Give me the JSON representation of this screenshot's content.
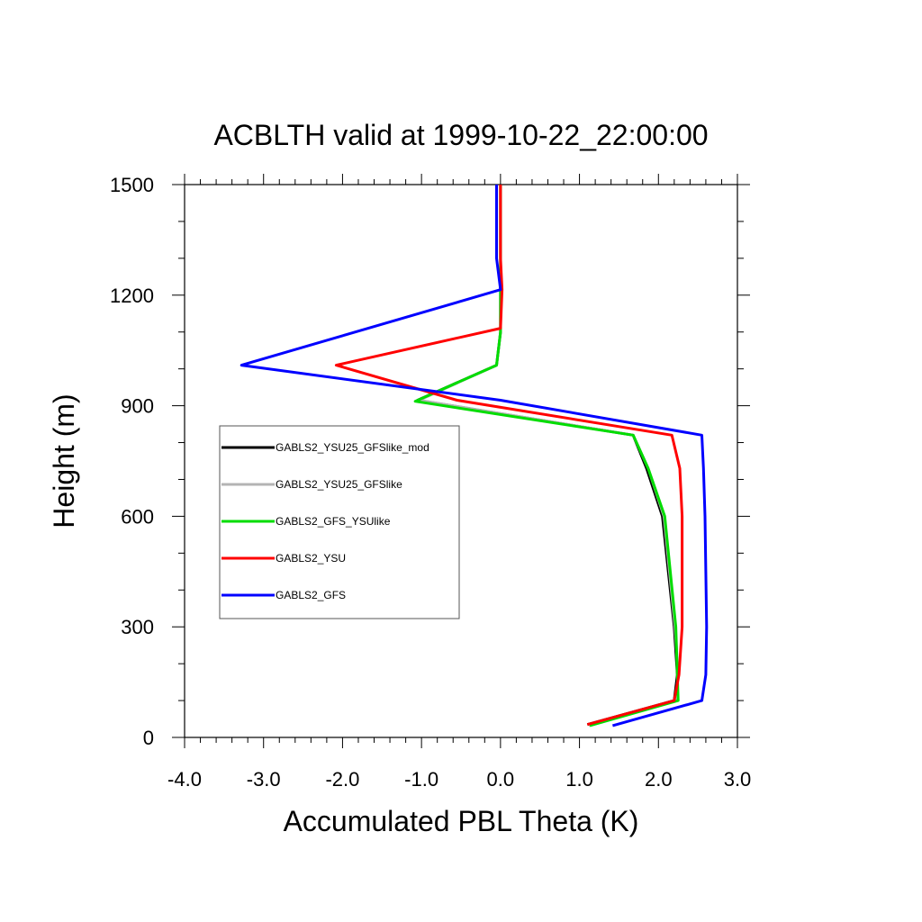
{
  "chart_data": {
    "type": "line",
    "title": "ACBLTH valid at 1999-10-22_22:00:00",
    "xlabel": "Accumulated PBL Theta (K)",
    "ylabel": "Height (m)",
    "xlim": [
      -4.0,
      3.0
    ],
    "ylim": [
      0,
      1500
    ],
    "xticks": [
      "-4.0",
      "-3.0",
      "-2.0",
      "-1.0",
      "0.0",
      "1.0",
      "2.0",
      "3.0"
    ],
    "yticks": [
      "0",
      "300",
      "600",
      "900",
      "1200",
      "1500"
    ],
    "legend_position": "left-middle",
    "series": [
      {
        "name": "GABLS2_YSU25_GFSlike_mod",
        "color": "#000000",
        "points": [
          [
            1.1,
            35
          ],
          [
            2.2,
            100
          ],
          [
            2.24,
            170
          ],
          [
            2.2,
            300
          ],
          [
            2.05,
            600
          ],
          [
            1.85,
            730
          ],
          [
            1.68,
            820
          ],
          [
            -1.05,
            915
          ],
          [
            -0.05,
            1010
          ],
          [
            0.0,
            1100
          ],
          [
            0.0,
            1215
          ],
          [
            0.0,
            1300
          ],
          [
            0.0,
            1500
          ]
        ]
      },
      {
        "name": "GABLS2_YSU25_GFSlike",
        "color": "#b4b4b4",
        "points": [
          [
            1.12,
            32
          ],
          [
            2.22,
            100
          ],
          [
            2.25,
            170
          ],
          [
            2.21,
            300
          ],
          [
            2.07,
            600
          ],
          [
            1.87,
            730
          ],
          [
            1.68,
            820
          ],
          [
            -1.03,
            915
          ],
          [
            -0.05,
            1010
          ],
          [
            0.0,
            1100
          ],
          [
            0.0,
            1215
          ],
          [
            0.0,
            1300
          ],
          [
            0.0,
            1500
          ]
        ]
      },
      {
        "name": "GABLS2_GFS_YSUlike",
        "color": "#00dd00",
        "points": [
          [
            1.13,
            32
          ],
          [
            2.25,
            100
          ],
          [
            2.24,
            170
          ],
          [
            2.22,
            300
          ],
          [
            2.08,
            600
          ],
          [
            1.87,
            730
          ],
          [
            1.68,
            820
          ],
          [
            -1.08,
            912
          ],
          [
            -0.05,
            1010
          ],
          [
            0.0,
            1100
          ],
          [
            0.0,
            1215
          ],
          [
            0.0,
            1300
          ],
          [
            0.0,
            1500
          ]
        ]
      },
      {
        "name": "GABLS2_YSU",
        "color": "#ff0000",
        "points": [
          [
            1.1,
            35
          ],
          [
            2.2,
            100
          ],
          [
            2.26,
            170
          ],
          [
            2.3,
            300
          ],
          [
            2.3,
            600
          ],
          [
            2.27,
            730
          ],
          [
            2.17,
            820
          ],
          [
            -0.55,
            915
          ],
          [
            -2.08,
            1010
          ],
          [
            0.0,
            1110
          ],
          [
            0.02,
            1215
          ],
          [
            0.0,
            1300
          ],
          [
            0.0,
            1500
          ]
        ]
      },
      {
        "name": "GABLS2_GFS",
        "color": "#0000ff",
        "points": [
          [
            1.42,
            32
          ],
          [
            2.55,
            100
          ],
          [
            2.6,
            170
          ],
          [
            2.61,
            300
          ],
          [
            2.59,
            600
          ],
          [
            2.57,
            730
          ],
          [
            2.55,
            820
          ],
          [
            0.0,
            915
          ],
          [
            -3.28,
            1010
          ],
          [
            0.0,
            1215
          ],
          [
            -0.05,
            1300
          ],
          [
            -0.05,
            1500
          ]
        ]
      }
    ]
  }
}
